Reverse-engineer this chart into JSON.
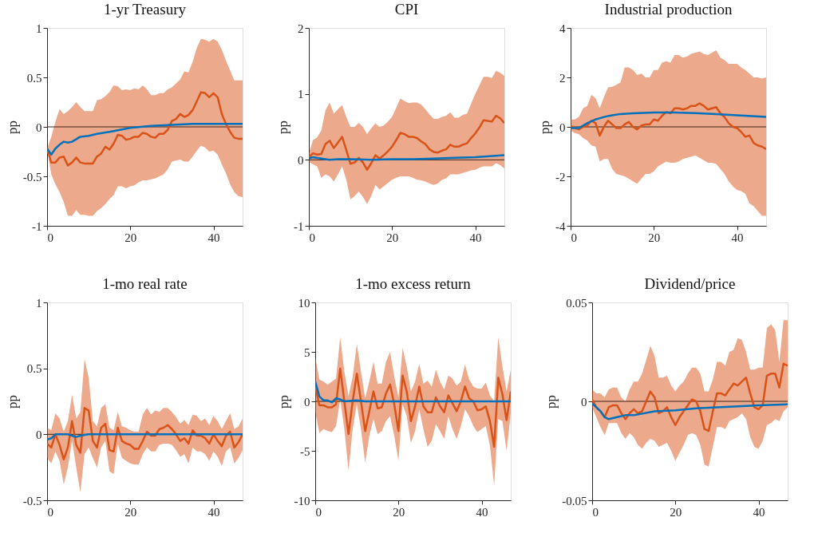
{
  "chart_data": [
    {
      "type": "line",
      "title": "1-yr Treasury",
      "ylabel": "pp",
      "xlim": [
        0,
        47
      ],
      "xticks": [
        0,
        20,
        40
      ],
      "ylim": [
        -1,
        1
      ],
      "yticks": [
        -1,
        -0.5,
        0,
        0.5,
        1
      ],
      "grid": false,
      "ref_lines": [
        {
          "axis": "y",
          "value": 0,
          "color": "#3c2418"
        }
      ],
      "series": [
        {
          "color": "#d95319",
          "x": [
            0,
            1,
            2,
            3,
            4,
            5,
            6,
            7,
            8,
            9,
            10,
            11,
            12,
            13,
            14,
            15,
            16,
            17,
            18,
            19,
            20,
            21,
            22,
            23,
            24,
            25,
            26,
            27,
            28,
            29,
            30,
            31,
            32,
            33,
            34,
            35,
            36,
            37,
            38,
            39,
            40,
            41,
            42,
            43,
            44,
            45,
            46,
            47
          ],
          "values": [
            -0.22,
            -0.36,
            -0.36,
            -0.31,
            -0.3,
            -0.39,
            -0.36,
            -0.31,
            -0.36,
            -0.37,
            -0.37,
            -0.37,
            -0.3,
            -0.27,
            -0.2,
            -0.23,
            -0.17,
            -0.08,
            -0.09,
            -0.13,
            -0.12,
            -0.1,
            -0.1,
            -0.06,
            -0.07,
            -0.1,
            -0.11,
            -0.07,
            -0.07,
            -0.03,
            0.06,
            0.08,
            0.13,
            0.1,
            0.12,
            0.17,
            0.26,
            0.35,
            0.34,
            0.3,
            0.34,
            0.3,
            0.13,
            0.03,
            -0.05,
            -0.11,
            -0.12,
            -0.12
          ],
          "lower": [
            -0.22,
            -0.48,
            -0.58,
            -0.66,
            -0.76,
            -0.9,
            -0.9,
            -0.84,
            -0.89,
            -0.89,
            -0.9,
            -0.9,
            -0.85,
            -0.82,
            -0.78,
            -0.73,
            -0.69,
            -0.6,
            -0.6,
            -0.62,
            -0.6,
            -0.59,
            -0.56,
            -0.54,
            -0.54,
            -0.53,
            -0.52,
            -0.5,
            -0.48,
            -0.43,
            -0.35,
            -0.34,
            -0.33,
            -0.35,
            -0.35,
            -0.3,
            -0.24,
            -0.19,
            -0.21,
            -0.25,
            -0.24,
            -0.28,
            -0.38,
            -0.47,
            -0.58,
            -0.66,
            -0.7,
            -0.71
          ],
          "upper": [
            -0.22,
            -0.1,
            0.05,
            0.18,
            0.13,
            0.16,
            0.2,
            0.25,
            0.2,
            0.16,
            0.16,
            0.16,
            0.27,
            0.28,
            0.31,
            0.35,
            0.42,
            0.41,
            0.37,
            0.38,
            0.37,
            0.39,
            0.38,
            0.42,
            0.38,
            0.32,
            0.32,
            0.34,
            0.34,
            0.38,
            0.4,
            0.44,
            0.48,
            0.56,
            0.55,
            0.66,
            0.8,
            0.89,
            0.88,
            0.86,
            0.89,
            0.86,
            0.78,
            0.67,
            0.57,
            0.47,
            0.47,
            0.47
          ]
        },
        {
          "color": "#0072bd",
          "x": [
            0,
            1,
            2,
            3,
            4,
            5,
            6,
            8,
            10,
            12,
            15,
            20,
            25,
            30,
            35,
            40,
            47
          ],
          "values": [
            -0.22,
            -0.28,
            -0.22,
            -0.18,
            -0.15,
            -0.16,
            -0.15,
            -0.1,
            -0.09,
            -0.07,
            -0.05,
            -0.01,
            0.01,
            0.02,
            0.03,
            0.03,
            0.03
          ]
        }
      ]
    },
    {
      "type": "line",
      "title": "CPI",
      "ylabel": "pp",
      "xlim": [
        0,
        47
      ],
      "xticks": [
        0,
        20,
        40
      ],
      "ylim": [
        -1,
        2
      ],
      "yticks": [
        -1,
        0,
        1,
        2
      ],
      "grid": false,
      "ref_lines": [
        {
          "axis": "y",
          "value": 0,
          "color": "#3c2418"
        }
      ],
      "series": [
        {
          "color": "#d95319",
          "x": [
            0,
            1,
            2,
            3,
            4,
            5,
            6,
            7,
            8,
            9,
            10,
            11,
            12,
            13,
            14,
            15,
            16,
            17,
            18,
            19,
            20,
            21,
            22,
            23,
            24,
            25,
            26,
            27,
            28,
            29,
            30,
            31,
            32,
            33,
            34,
            35,
            36,
            37,
            38,
            39,
            40,
            41,
            42,
            43,
            44,
            45,
            46,
            47
          ],
          "values": [
            0.04,
            0.1,
            0.08,
            0.09,
            0.24,
            0.29,
            0.18,
            0.26,
            0.35,
            0.15,
            -0.06,
            -0.04,
            0.03,
            -0.04,
            -0.15,
            -0.05,
            0.07,
            0.02,
            0.07,
            0.13,
            0.2,
            0.3,
            0.41,
            0.39,
            0.35,
            0.35,
            0.33,
            0.28,
            0.24,
            0.16,
            0.12,
            0.11,
            0.14,
            0.16,
            0.23,
            0.2,
            0.2,
            0.23,
            0.25,
            0.33,
            0.4,
            0.49,
            0.6,
            0.59,
            0.58,
            0.67,
            0.63,
            0.56
          ],
          "lower": [
            -0.03,
            -0.07,
            -0.1,
            -0.27,
            -0.22,
            -0.25,
            -0.33,
            -0.22,
            -0.1,
            -0.3,
            -0.6,
            -0.55,
            -0.48,
            -0.56,
            -0.67,
            -0.55,
            -0.38,
            -0.45,
            -0.4,
            -0.35,
            -0.3,
            -0.27,
            -0.25,
            -0.25,
            -0.25,
            -0.27,
            -0.3,
            -0.31,
            -0.33,
            -0.36,
            -0.38,
            -0.36,
            -0.3,
            -0.28,
            -0.22,
            -0.22,
            -0.22,
            -0.2,
            -0.18,
            -0.16,
            -0.15,
            -0.12,
            -0.1,
            -0.1,
            -0.1,
            -0.05,
            -0.08,
            -0.13
          ],
          "upper": [
            0.1,
            0.3,
            0.34,
            0.45,
            0.75,
            0.87,
            0.7,
            0.77,
            0.83,
            0.65,
            0.5,
            0.5,
            0.56,
            0.5,
            0.39,
            0.48,
            0.55,
            0.5,
            0.52,
            0.58,
            0.65,
            0.79,
            0.93,
            0.89,
            0.86,
            0.87,
            0.87,
            0.84,
            0.77,
            0.69,
            0.62,
            0.62,
            0.65,
            0.67,
            0.72,
            0.64,
            0.64,
            0.68,
            0.7,
            0.85,
            1.0,
            1.13,
            1.26,
            1.26,
            1.24,
            1.35,
            1.32,
            1.27
          ]
        },
        {
          "color": "#0072bd",
          "x": [
            0,
            1,
            3,
            5,
            7,
            10,
            15,
            20,
            25,
            30,
            35,
            40,
            47
          ],
          "values": [
            0.02,
            0.04,
            0.02,
            0.0,
            0.01,
            0.01,
            0.0,
            0.01,
            0.01,
            0.02,
            0.03,
            0.04,
            0.07
          ]
        }
      ]
    },
    {
      "type": "line",
      "title": "Industrial production",
      "ylabel": "pp",
      "xlim": [
        0,
        47
      ],
      "xticks": [
        0,
        20,
        40
      ],
      "ylim": [
        -4,
        4
      ],
      "yticks": [
        -4,
        -2,
        0,
        2,
        4
      ],
      "grid": false,
      "ref_lines": [
        {
          "axis": "y",
          "value": 0,
          "color": "#3c2418"
        }
      ],
      "series": [
        {
          "color": "#d95319",
          "x": [
            0,
            1,
            2,
            3,
            4,
            5,
            6,
            7,
            8,
            9,
            10,
            11,
            12,
            13,
            14,
            15,
            16,
            17,
            18,
            19,
            20,
            21,
            22,
            23,
            24,
            25,
            26,
            27,
            28,
            29,
            30,
            31,
            32,
            33,
            34,
            35,
            36,
            37,
            38,
            39,
            40,
            41,
            42,
            43,
            44,
            45,
            46,
            47
          ],
          "values": [
            0.05,
            -0.05,
            -0.1,
            0.0,
            0.05,
            0.25,
            0.15,
            -0.35,
            0.0,
            0.25,
            0.1,
            -0.05,
            -0.05,
            0.1,
            0.2,
            0.0,
            -0.1,
            0.05,
            0.1,
            0.1,
            0.3,
            0.25,
            0.45,
            0.6,
            0.55,
            0.75,
            0.75,
            0.7,
            0.75,
            0.85,
            0.85,
            0.95,
            0.85,
            0.7,
            0.75,
            0.8,
            0.55,
            0.4,
            0.15,
            0.0,
            -0.05,
            -0.2,
            -0.4,
            -0.35,
            -0.65,
            -0.75,
            -0.8,
            -0.9
          ],
          "lower": [
            -0.15,
            -0.25,
            -0.3,
            -0.45,
            -0.55,
            -0.75,
            -0.8,
            -1.4,
            -1.3,
            -1.3,
            -1.7,
            -1.9,
            -1.95,
            -2.0,
            -2.1,
            -2.2,
            -2.3,
            -2.1,
            -1.9,
            -1.9,
            -1.8,
            -1.6,
            -1.5,
            -1.4,
            -1.45,
            -1.45,
            -1.4,
            -1.3,
            -1.25,
            -1.2,
            -1.15,
            -1.25,
            -1.35,
            -1.45,
            -1.45,
            -1.5,
            -1.7,
            -1.9,
            -2.2,
            -2.4,
            -2.55,
            -2.6,
            -2.7,
            -3.1,
            -3.2,
            -3.4,
            -3.6,
            -3.6
          ],
          "upper": [
            0.3,
            0.3,
            0.4,
            0.75,
            0.85,
            1.3,
            1.15,
            0.75,
            1.2,
            1.6,
            1.62,
            1.7,
            1.8,
            2.4,
            2.4,
            2.3,
            2.1,
            2.15,
            2.0,
            2.0,
            2.3,
            2.3,
            2.6,
            2.65,
            2.6,
            2.9,
            2.9,
            2.8,
            2.85,
            2.95,
            3.0,
            3.05,
            2.95,
            2.9,
            3.0,
            3.1,
            2.8,
            2.7,
            2.55,
            2.55,
            2.55,
            2.4,
            2.3,
            2.15,
            2.0,
            2.0,
            1.95,
            2.0
          ]
        },
        {
          "color": "#0072bd",
          "x": [
            0,
            2,
            4,
            6,
            8,
            10,
            12,
            15,
            20,
            25,
            30,
            35,
            40,
            47
          ],
          "values": [
            -0.05,
            -0.05,
            0.15,
            0.3,
            0.4,
            0.47,
            0.52,
            0.55,
            0.58,
            0.58,
            0.56,
            0.52,
            0.47,
            0.4
          ]
        }
      ]
    },
    {
      "type": "line",
      "title": "1-mo real rate",
      "ylabel": "pp",
      "xlim": [
        0,
        47
      ],
      "xticks": [
        0,
        20,
        40
      ],
      "ylim": [
        -0.5,
        1
      ],
      "yticks": [
        -0.5,
        0,
        0.5,
        1
      ],
      "grid": false,
      "ref_lines": [
        {
          "axis": "y",
          "value": 0,
          "color": "#3c2418"
        }
      ],
      "series": [
        {
          "color": "#d95319",
          "x": [
            0,
            1,
            2,
            3,
            4,
            5,
            6,
            7,
            8,
            9,
            10,
            11,
            12,
            13,
            14,
            15,
            16,
            17,
            18,
            19,
            20,
            21,
            22,
            23,
            24,
            25,
            26,
            27,
            28,
            29,
            30,
            31,
            32,
            33,
            34,
            35,
            36,
            37,
            38,
            39,
            40,
            41,
            42,
            43,
            44,
            45,
            46,
            47
          ],
          "values": [
            -0.07,
            -0.1,
            0.0,
            -0.08,
            -0.19,
            -0.1,
            0.1,
            -0.08,
            -0.14,
            0.2,
            0.18,
            -0.05,
            -0.1,
            0.05,
            0.08,
            -0.12,
            -0.13,
            0.05,
            -0.05,
            -0.07,
            -0.08,
            -0.11,
            -0.11,
            -0.05,
            0.02,
            -0.01,
            -0.01,
            0.04,
            0.05,
            0.07,
            0.04,
            0.0,
            -0.05,
            -0.03,
            -0.07,
            0.03,
            -0.01,
            -0.01,
            -0.03,
            -0.07,
            0.0,
            -0.05,
            -0.09,
            -0.01,
            0.02,
            -0.1,
            -0.06,
            0.0
          ],
          "lower": [
            -0.18,
            -0.22,
            -0.13,
            -0.2,
            -0.38,
            -0.25,
            -0.05,
            -0.25,
            -0.44,
            -0.15,
            -0.1,
            -0.18,
            -0.25,
            -0.1,
            -0.05,
            -0.28,
            -0.3,
            -0.07,
            -0.18,
            -0.2,
            -0.22,
            -0.23,
            -0.23,
            -0.15,
            -0.1,
            -0.13,
            -0.13,
            -0.08,
            -0.07,
            -0.07,
            -0.08,
            -0.12,
            -0.17,
            -0.15,
            -0.22,
            -0.1,
            -0.13,
            -0.13,
            -0.15,
            -0.2,
            -0.13,
            -0.17,
            -0.24,
            -0.13,
            -0.1,
            -0.22,
            -0.18,
            -0.12
          ],
          "upper": [
            0.05,
            0.03,
            0.16,
            0.12,
            0.02,
            0.1,
            0.3,
            0.12,
            0.17,
            0.57,
            0.43,
            0.1,
            0.06,
            0.2,
            0.23,
            0.05,
            0.03,
            0.17,
            0.06,
            0.05,
            0.03,
            0.02,
            0.02,
            0.15,
            0.2,
            0.15,
            0.18,
            0.17,
            0.2,
            0.2,
            0.17,
            0.13,
            0.08,
            0.11,
            0.07,
            0.15,
            0.14,
            0.1,
            0.12,
            0.07,
            0.14,
            0.1,
            0.04,
            0.1,
            0.16,
            0.04,
            0.06,
            0.12
          ]
        },
        {
          "color": "#0072bd",
          "x": [
            0,
            1,
            2,
            4,
            5,
            6,
            7,
            8,
            10,
            20,
            47
          ],
          "values": [
            -0.04,
            -0.03,
            0.0,
            0.0,
            0.0,
            -0.01,
            -0.02,
            -0.01,
            0.0,
            0.0,
            0.0
          ]
        }
      ]
    },
    {
      "type": "line",
      "title": "1-mo excess return",
      "ylabel": "pp",
      "xlim": [
        0,
        47
      ],
      "xticks": [
        0,
        20,
        40
      ],
      "ylim": [
        -10,
        10
      ],
      "yticks": [
        -10,
        -5,
        0,
        5,
        10
      ],
      "grid": false,
      "ref_lines": [
        {
          "axis": "y",
          "value": 0,
          "color": "#3c2418"
        }
      ],
      "series": [
        {
          "color": "#d95319",
          "x": [
            0,
            1,
            2,
            3,
            4,
            5,
            6,
            7,
            8,
            9,
            10,
            11,
            12,
            13,
            14,
            15,
            16,
            17,
            18,
            19,
            20,
            21,
            22,
            23,
            24,
            25,
            26,
            27,
            28,
            29,
            30,
            31,
            32,
            33,
            34,
            35,
            36,
            37,
            38,
            39,
            40,
            41,
            42,
            43,
            44,
            45,
            46,
            47
          ],
          "values": [
            1.5,
            -0.4,
            -0.4,
            -0.6,
            -0.6,
            -0.3,
            3.3,
            0.0,
            -3.3,
            0.0,
            2.8,
            0.0,
            -3.0,
            -1.0,
            1.0,
            -0.7,
            -0.6,
            0.8,
            1.7,
            -0.3,
            -3.0,
            2.6,
            1.0,
            -2.0,
            -0.5,
            1.5,
            -0.5,
            -1.1,
            -1.1,
            0.4,
            -0.5,
            -1.1,
            0.6,
            -0.2,
            -1.0,
            0.0,
            1.5,
            0.3,
            0.0,
            -0.9,
            -0.8,
            -0.5,
            -2.0,
            -4.6,
            2.4,
            0.7,
            -1.9,
            1.0
          ],
          "lower": [
            -1.0,
            -3.2,
            -2.8,
            -3.0,
            -3.1,
            -2.5,
            0.2,
            -2.8,
            -7.0,
            -2.8,
            -0.3,
            -2.8,
            -6.2,
            -3.5,
            -1.8,
            -3.3,
            -3.0,
            -2.0,
            -1.5,
            -3.5,
            -6.0,
            -0.3,
            -1.5,
            -4.2,
            -3.0,
            -0.8,
            -2.8,
            -4.6,
            -4.0,
            -2.3,
            -3.0,
            -3.8,
            -1.5,
            -2.8,
            -3.8,
            -2.5,
            -0.8,
            -1.5,
            -2.5,
            -3.1,
            -2.8,
            -2.5,
            -4.5,
            -8.5,
            -1.8,
            -2.0,
            -5.0,
            -1.2
          ],
          "upper": [
            4.5,
            2.2,
            2.0,
            1.7,
            2.0,
            2.3,
            6.5,
            3.0,
            0.5,
            2.5,
            5.8,
            3.0,
            0.3,
            2.0,
            4.0,
            1.8,
            1.8,
            4.0,
            5.0,
            2.5,
            0.4,
            5.4,
            3.5,
            1.0,
            2.0,
            3.8,
            1.8,
            2.1,
            1.5,
            3.2,
            2.0,
            1.2,
            2.6,
            2.3,
            1.6,
            2.0,
            3.7,
            2.2,
            1.5,
            1.3,
            1.3,
            1.9,
            0.6,
            0.0,
            6.5,
            3.5,
            1.0,
            3.2
          ]
        },
        {
          "color": "#0072bd",
          "x": [
            0,
            1,
            2,
            3,
            4,
            5,
            6,
            7,
            10,
            12,
            47
          ],
          "values": [
            2.0,
            0.5,
            0.1,
            0.1,
            -0.1,
            0.3,
            0.2,
            0.0,
            0.1,
            0.0,
            0.0
          ]
        }
      ]
    },
    {
      "type": "line",
      "title": "Dividend/price",
      "ylabel": "pp",
      "xlim": [
        0,
        47
      ],
      "xticks": [
        0,
        20,
        40
      ],
      "ylim": [
        -0.05,
        0.05
      ],
      "yticks": [
        -0.05,
        0,
        0.05
      ],
      "grid": false,
      "ref_lines": [
        {
          "axis": "y",
          "value": 0,
          "color": "#3c2418"
        }
      ],
      "series": [
        {
          "color": "#d95319",
          "x": [
            0,
            1,
            2,
            3,
            4,
            5,
            6,
            7,
            8,
            9,
            10,
            11,
            12,
            13,
            14,
            15,
            16,
            17,
            18,
            19,
            20,
            21,
            22,
            23,
            24,
            25,
            26,
            27,
            28,
            29,
            30,
            31,
            32,
            33,
            34,
            35,
            36,
            37,
            38,
            39,
            40,
            41,
            42,
            43,
            44,
            45,
            46,
            47
          ],
          "values": [
            0.001,
            -0.003,
            -0.005,
            -0.008,
            -0.003,
            -0.002,
            -0.002,
            -0.006,
            -0.009,
            -0.006,
            -0.004,
            -0.006,
            -0.005,
            0.0,
            0.005,
            0.002,
            -0.006,
            -0.005,
            -0.003,
            -0.008,
            -0.012,
            -0.008,
            -0.005,
            -0.002,
            0.001,
            0.0,
            -0.005,
            -0.014,
            -0.015,
            -0.005,
            0.004,
            0.004,
            0.003,
            0.006,
            0.009,
            0.008,
            0.01,
            0.012,
            0.004,
            -0.003,
            -0.004,
            -0.002,
            0.013,
            0.014,
            0.014,
            0.007,
            0.019,
            0.018
          ],
          "lower": [
            -0.003,
            -0.008,
            -0.013,
            -0.017,
            -0.011,
            -0.011,
            -0.011,
            -0.016,
            -0.019,
            -0.016,
            -0.018,
            -0.022,
            -0.024,
            -0.021,
            -0.019,
            -0.02,
            -0.023,
            -0.022,
            -0.021,
            -0.025,
            -0.03,
            -0.026,
            -0.022,
            -0.017,
            -0.016,
            -0.017,
            -0.022,
            -0.032,
            -0.033,
            -0.023,
            -0.013,
            -0.013,
            -0.014,
            -0.01,
            -0.009,
            -0.008,
            -0.006,
            -0.009,
            -0.018,
            -0.023,
            -0.024,
            -0.02,
            -0.012,
            -0.011,
            -0.009,
            -0.01,
            -0.005,
            -0.003
          ],
          "upper": [
            0.006,
            0.004,
            0.004,
            0.002,
            0.006,
            0.007,
            0.007,
            0.002,
            0.0,
            0.006,
            0.01,
            0.01,
            0.014,
            0.021,
            0.028,
            0.023,
            0.012,
            0.012,
            0.013,
            0.008,
            0.005,
            0.008,
            0.01,
            0.014,
            0.017,
            0.017,
            0.014,
            0.005,
            0.005,
            0.011,
            0.02,
            0.02,
            0.018,
            0.025,
            0.026,
            0.032,
            0.031,
            0.025,
            0.016,
            0.016,
            0.017,
            0.017,
            0.037,
            0.039,
            0.036,
            0.02,
            0.041,
            0.041
          ]
        },
        {
          "color": "#0072bd",
          "x": [
            0,
            2,
            3,
            4,
            6,
            8,
            10,
            15,
            20,
            25,
            30,
            35,
            40,
            47
          ],
          "values": [
            -0.001,
            -0.005,
            -0.008,
            -0.009,
            -0.008,
            -0.007,
            -0.007,
            -0.005,
            -0.0045,
            -0.0035,
            -0.003,
            -0.0025,
            -0.002,
            -0.0015
          ]
        }
      ]
    }
  ]
}
